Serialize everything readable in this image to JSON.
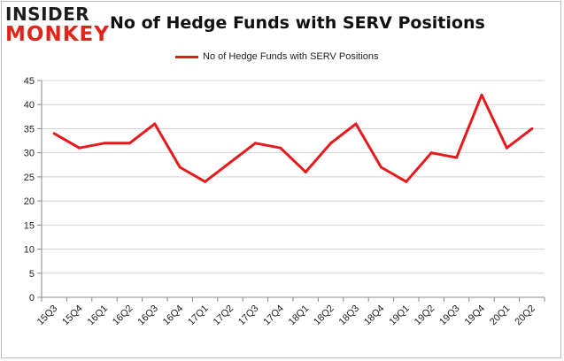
{
  "brand": {
    "logo_top": "INSIDER",
    "logo_bottom": "MONKEY",
    "accent": "#e0261b"
  },
  "chart_data": {
    "type": "line",
    "title": "No of Hedge Funds with SERV Positions",
    "xlabel": "",
    "ylabel": "",
    "legend_position": "top-center",
    "grid": true,
    "ylim": [
      0,
      45
    ],
    "yticks": [
      "0",
      "5",
      "10",
      "15",
      "20",
      "25",
      "30",
      "35",
      "40",
      "45"
    ],
    "categories": [
      "15Q3",
      "15Q4",
      "16Q1",
      "16Q2",
      "16Q3",
      "16Q4",
      "17Q1",
      "17Q2",
      "17Q3",
      "17Q4",
      "18Q1",
      "18Q2",
      "18Q3",
      "18Q4",
      "19Q1",
      "19Q2",
      "19Q3",
      "19Q4",
      "20Q1",
      "20Q2"
    ],
    "series": [
      {
        "name": "No of Hedge Funds with SERV Positions",
        "color": "#e8191c",
        "values": [
          34,
          31,
          32,
          32,
          36,
          27,
          24,
          28,
          32,
          31,
          26,
          32,
          36,
          27,
          24,
          30,
          29,
          42,
          31,
          35
        ]
      }
    ]
  }
}
